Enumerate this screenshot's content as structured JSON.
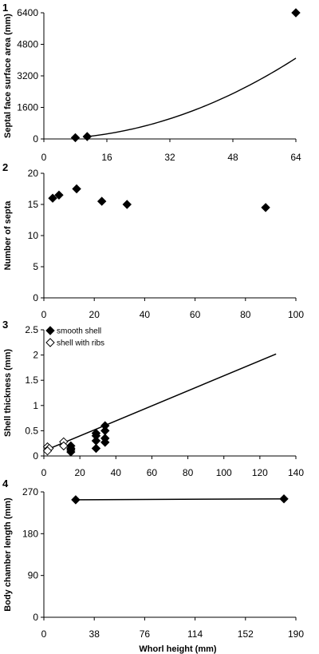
{
  "chart_data": [
    {
      "panel_label": "1",
      "type": "scatter",
      "ylabel": "Septal face surface area (mm)",
      "xlim": [
        0,
        64
      ],
      "ylim": [
        0,
        6400
      ],
      "xticks": [
        0,
        16,
        32,
        48,
        64
      ],
      "yticks": [
        0,
        1600,
        3200,
        4800,
        6400
      ],
      "series": [
        {
          "marker": "filled-diamond",
          "points": [
            [
              8,
              64
            ],
            [
              11,
              121
            ],
            [
              64,
              6400
            ]
          ]
        }
      ],
      "curve": {
        "type": "power",
        "coef": 1,
        "exp": 2,
        "x_range": [
          10,
          64
        ]
      }
    },
    {
      "panel_label": "2",
      "type": "scatter",
      "ylabel": "Number of septa",
      "xlim": [
        0,
        100
      ],
      "ylim": [
        0,
        20
      ],
      "xticks": [
        0,
        20,
        40,
        60,
        80,
        100
      ],
      "yticks": [
        0,
        5,
        10,
        15,
        20
      ],
      "series": [
        {
          "marker": "filled-diamond",
          "points": [
            [
              3.5,
              16
            ],
            [
              6,
              16.5
            ],
            [
              13,
              17.5
            ],
            [
              23,
              15.5
            ],
            [
              33,
              15
            ],
            [
              88,
              14.5
            ]
          ]
        }
      ]
    },
    {
      "panel_label": "3",
      "type": "scatter",
      "ylabel": "Shell thickness (mm)",
      "xlim": [
        0,
        140
      ],
      "ylim": [
        0,
        2.5
      ],
      "xticks": [
        0,
        20,
        40,
        60,
        80,
        100,
        120,
        140
      ],
      "yticks": [
        "0",
        "0.5",
        "1",
        "1.5",
        "2",
        "2.5"
      ],
      "legend": {
        "position": "top-left"
      },
      "series": [
        {
          "name": "smooth shell",
          "marker": "filled-diamond",
          "points": [
            [
              15,
              0.2
            ],
            [
              15,
              0.15
            ],
            [
              15,
              0.08
            ],
            [
              15,
              0.12
            ],
            [
              29,
              0.45
            ],
            [
              29,
              0.4
            ],
            [
              29,
              0.3
            ],
            [
              29,
              0.15
            ],
            [
              34,
              0.6
            ],
            [
              34,
              0.5
            ],
            [
              34,
              0.35
            ],
            [
              34,
              0.27
            ]
          ]
        },
        {
          "name": "shell with ribs",
          "marker": "open-diamond",
          "points": [
            [
              2,
              0.18
            ],
            [
              3,
              0.15
            ],
            [
              2,
              0.1
            ],
            [
              11,
              0.28
            ],
            [
              11,
              0.2
            ]
          ]
        }
      ],
      "trendline": {
        "x": [
          0,
          129
        ],
        "y": [
          0.1,
          2.02
        ]
      }
    },
    {
      "panel_label": "4",
      "type": "line",
      "ylabel": "Body chamber length (mm)",
      "xlabel": "Whorl height (mm)",
      "xlim": [
        0,
        190
      ],
      "ylim": [
        0,
        270
      ],
      "xticks": [
        0,
        38,
        76,
        114,
        152,
        190
      ],
      "yticks": [
        0,
        90,
        180,
        270
      ],
      "series": [
        {
          "marker": "filled-diamond",
          "points": [
            [
              24,
              253
            ],
            [
              181,
              255
            ]
          ]
        }
      ]
    }
  ]
}
